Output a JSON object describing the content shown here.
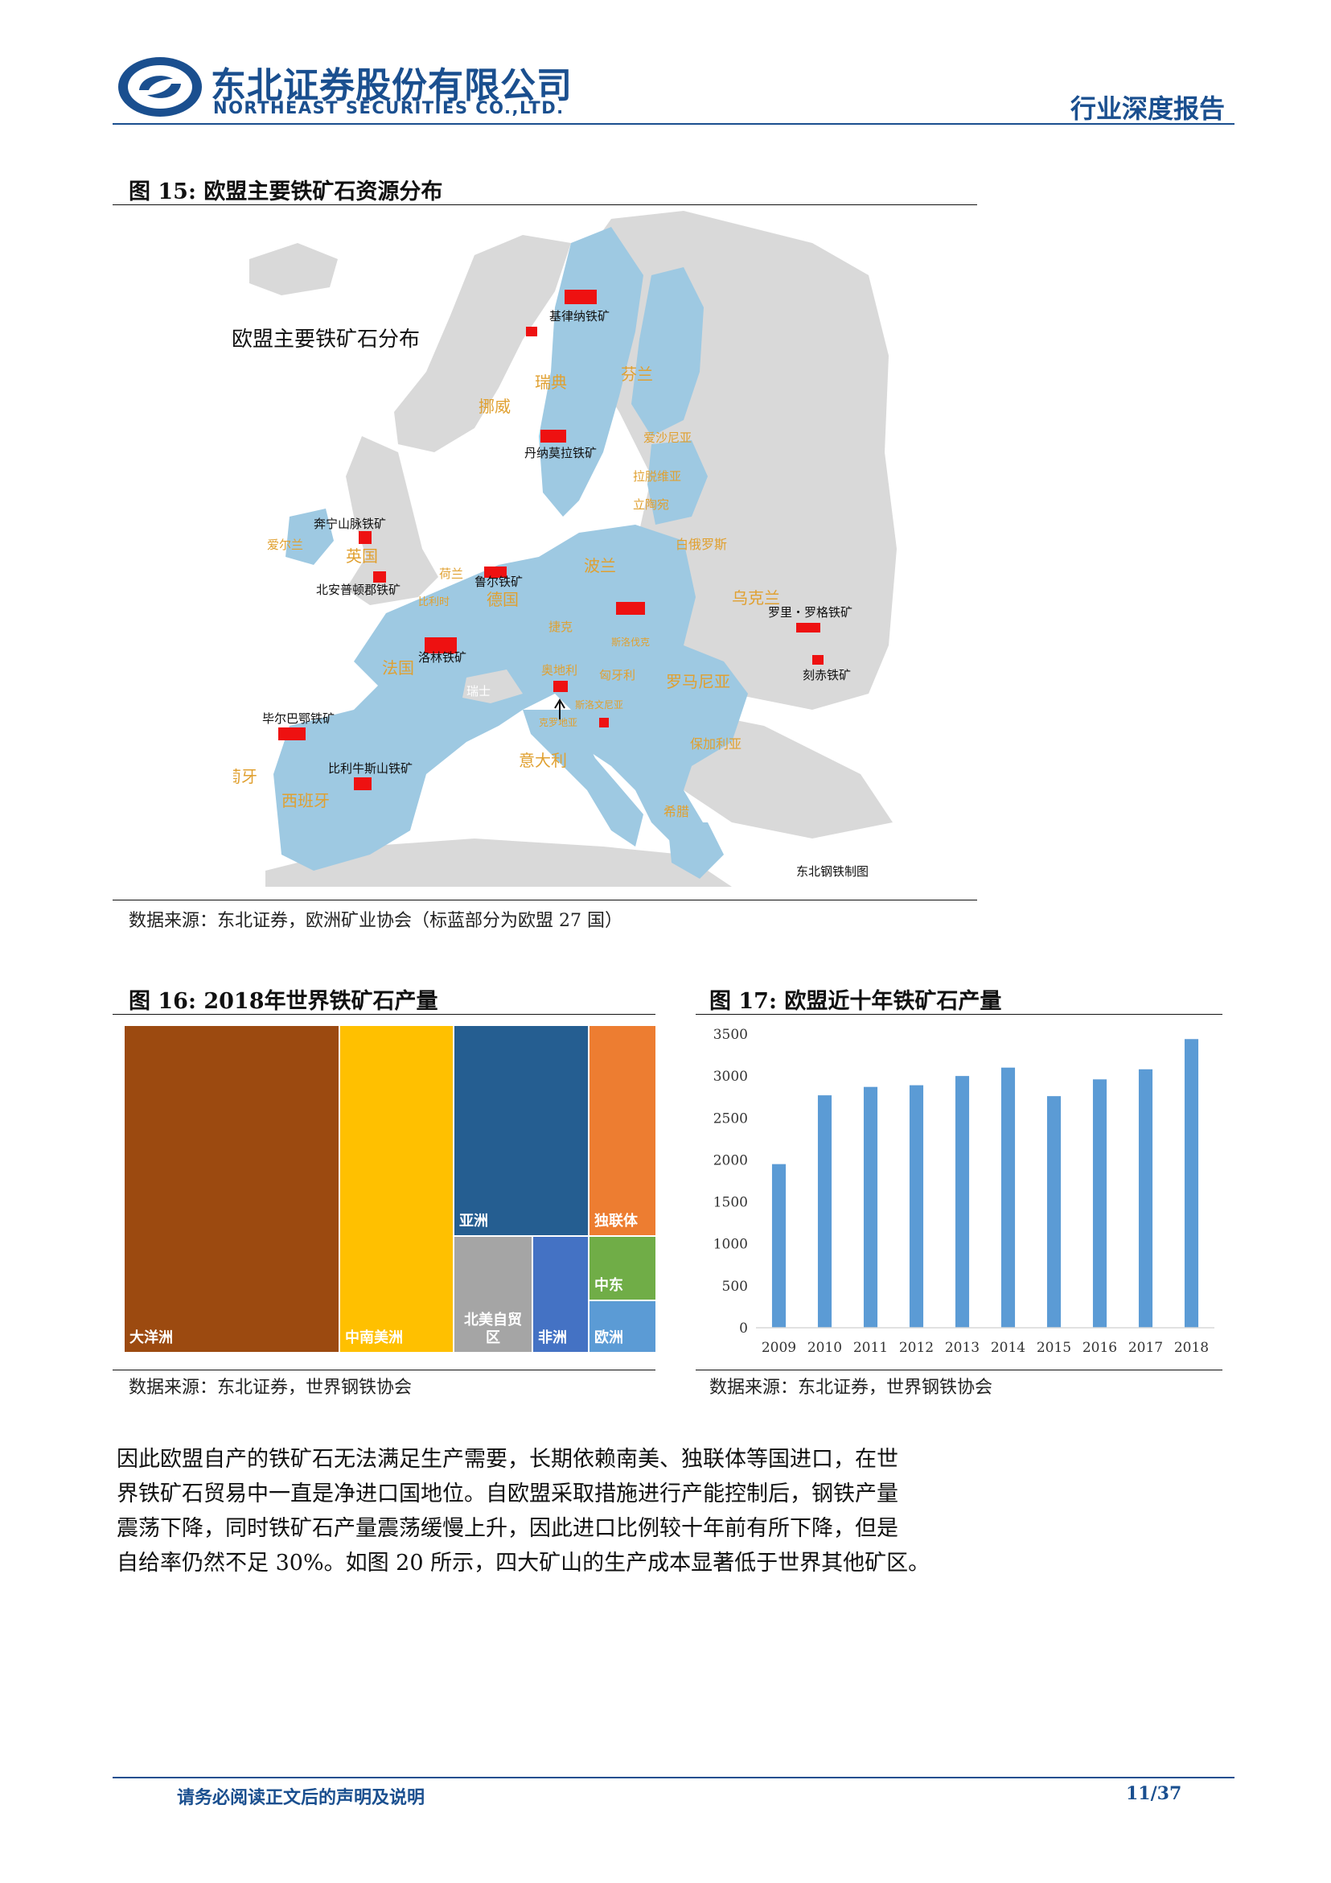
{
  "header": {
    "company_cn": "东北证券股份有限公司",
    "company_en": "NORTHEAST SECURITIES CO.,LTD.",
    "report_type": "行业深度报告"
  },
  "colors": {
    "brand": "#1a4f8f",
    "eu_land": "#9ec9e2",
    "other_land": "#d9d9d9",
    "mine_marker": "#ee1111",
    "map_label": "#e0a030",
    "bar": "#5b9bd5"
  },
  "figure15": {
    "title": "图 15: 欧盟主要铁矿石资源分布",
    "map_title": "欧盟主要铁矿石分布",
    "credit": "东北钢铁制图",
    "countries": [
      "瑞典",
      "芬兰",
      "挪威",
      "爱沙尼亚",
      "拉脱维亚",
      "立陶宛",
      "白俄罗斯",
      "爱尔兰",
      "英国",
      "荷兰",
      "比利时",
      "德国",
      "波兰",
      "乌克兰",
      "捷克",
      "斯洛伐克",
      "奥地利",
      "匈牙利",
      "罗马尼亚",
      "法国",
      "瑞士",
      "斯洛文尼亚",
      "克罗地亚",
      "意大利",
      "保加利亚",
      "希腊",
      "葡萄牙",
      "西班牙"
    ],
    "mines": [
      "基律纳铁矿",
      "丹纳莫拉铁矿",
      "奔宁山脉铁矿",
      "北安普顿郡铁矿",
      "鲁尔铁矿",
      "洛林铁矿",
      "罗里・罗格铁矿",
      "刻赤铁矿",
      "毕尔巴鄂铁矿",
      "比利牛斯山铁矿"
    ],
    "source": "数据来源：东北证券，欧洲矿业协会（标蓝部分为欧盟 27 国）"
  },
  "figure16": {
    "title": "图 16: 2018年世界铁矿石产量",
    "source": "数据来源：东北证券，世界钢铁协会",
    "tiles": [
      {
        "label": "大洋洲",
        "color": "#9c4a10"
      },
      {
        "label": "中南美洲",
        "color": "#ffc000"
      },
      {
        "label": "亚洲",
        "color": "#255e91"
      },
      {
        "label": "独联体",
        "color": "#ed7d31"
      },
      {
        "label": "北美自贸区",
        "color": "#a5a5a5"
      },
      {
        "label": "非洲",
        "color": "#4472c4"
      },
      {
        "label": "中东",
        "color": "#70ad47"
      },
      {
        "label": "欧洲",
        "color": "#5b9bd5"
      }
    ]
  },
  "figure17": {
    "title": "图 17: 欧盟近十年铁矿石产量",
    "source": "数据来源：东北证券，世界钢铁协会"
  },
  "chart_data": {
    "type": "bar",
    "title": "",
    "categories": [
      "2009",
      "2010",
      "2011",
      "2012",
      "2013",
      "2014",
      "2015",
      "2016",
      "2017",
      "2018"
    ],
    "values": [
      1950,
      2770,
      2870,
      2890,
      3000,
      3100,
      2760,
      2960,
      3080,
      3440
    ],
    "ylim": [
      0,
      3500
    ],
    "yticks": [
      0,
      500,
      1000,
      1500,
      2000,
      2500,
      3000,
      3500
    ],
    "xlabel": "",
    "ylabel": "",
    "grid": false,
    "color": "#5b9bd5"
  },
  "body": {
    "paragraph_lines": [
      "因此欧盟自产的铁矿石无法满足生产需要，长期依赖南美、独联体等国进口，在世",
      "界铁矿石贸易中一直是净进口国地位。自欧盟采取措施进行产能控制后，钢铁产量",
      "震荡下降，同时铁矿石产量震荡缓慢上升，因此进口比例较十年前有所下降，但是",
      "自给率仍然不足 30%。如图 20 所示，四大矿山的生产成本显著低于世界其他矿区。"
    ]
  },
  "footer": {
    "note": "请务必阅读正文后的声明及说明",
    "page": "11/37"
  }
}
